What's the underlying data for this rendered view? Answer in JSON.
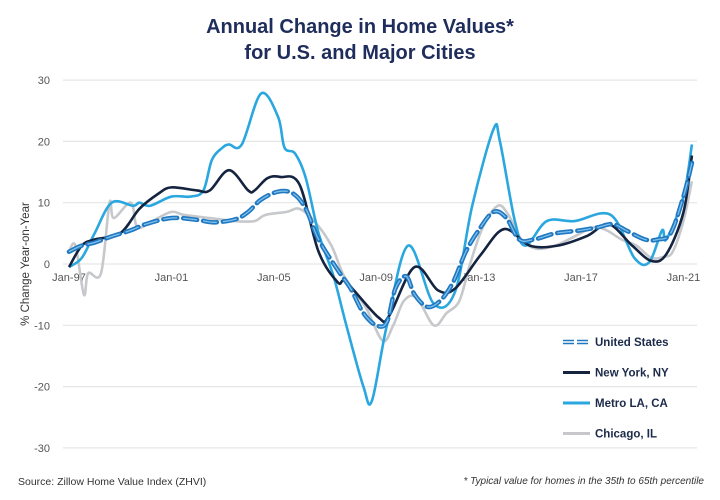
{
  "chart_data": {
    "type": "line",
    "title": "Annual Change in Home Values*",
    "subtitle": "for U.S. and Major Cities",
    "ylabel": "% Change Year-on-Year",
    "xlabel": "",
    "ylim": [
      -30,
      30
    ],
    "yticks": [
      30,
      20,
      10,
      0,
      -10,
      -20,
      -30
    ],
    "xticks": [
      {
        "label": "Jan-97",
        "date": "1997-01"
      },
      {
        "label": "Jan-01",
        "date": "2001-01"
      },
      {
        "label": "Jan-05",
        "date": "2005-01"
      },
      {
        "label": "Jan-09",
        "date": "2009-01"
      },
      {
        "label": "Jan-13",
        "date": "2013-01"
      },
      {
        "label": "Jan-17",
        "date": "2017-01"
      },
      {
        "label": "Jan-21",
        "date": "2021-01"
      }
    ],
    "grid": true,
    "legend_position": "bottom-right",
    "series": [
      {
        "name": "Chicago, IL",
        "color": "#c6c8cb",
        "style": "solid",
        "points": [
          [
            "1997-01",
            2
          ],
          [
            "1997-04",
            3
          ],
          [
            "1997-08",
            -5
          ],
          [
            "1997-10",
            -1.5
          ],
          [
            "1998-04",
            -1.5
          ],
          [
            "1998-08",
            10
          ],
          [
            "1998-10",
            7.5
          ],
          [
            "1999-06",
            10
          ],
          [
            "1999-09",
            6
          ],
          [
            "2000-04",
            7
          ],
          [
            "2001-01",
            8.5
          ],
          [
            "2001-07",
            8
          ],
          [
            "2002-07",
            7.5
          ],
          [
            "2003-07",
            7
          ],
          [
            "2004-04",
            7
          ],
          [
            "2004-09",
            8
          ],
          [
            "2005-07",
            8.5
          ],
          [
            "2006-01",
            9
          ],
          [
            "2006-08",
            7
          ],
          [
            "2007-04",
            3
          ],
          [
            "2007-10",
            -2
          ],
          [
            "2008-08",
            -7
          ],
          [
            "2009-04",
            -12.5
          ],
          [
            "2009-09",
            -10
          ],
          [
            "2010-02",
            -6
          ],
          [
            "2010-08",
            -5.5
          ],
          [
            "2011-04",
            -10
          ],
          [
            "2011-10",
            -8
          ],
          [
            "2012-04",
            -6
          ],
          [
            "2012-09",
            0
          ],
          [
            "2013-03",
            6
          ],
          [
            "2013-10",
            9.5
          ],
          [
            "2014-03",
            8
          ],
          [
            "2014-09",
            4
          ],
          [
            "2015-04",
            2.5
          ],
          [
            "2016-01",
            3
          ],
          [
            "2016-10",
            4.5
          ],
          [
            "2017-07",
            6
          ],
          [
            "2018-01",
            5.5
          ],
          [
            "2018-08",
            4
          ],
          [
            "2019-03",
            3
          ],
          [
            "2019-10",
            1
          ],
          [
            "2020-04",
            1.2
          ],
          [
            "2020-08",
            2
          ],
          [
            "2021-01",
            7
          ],
          [
            "2021-05",
            13.5
          ]
        ]
      },
      {
        "name": "Metro LA, CA",
        "color": "#2aa7df",
        "style": "solid",
        "points": [
          [
            "1997-01",
            -0.5
          ],
          [
            "1997-07",
            1
          ],
          [
            "1998-01",
            5
          ],
          [
            "1998-09",
            10
          ],
          [
            "1999-07",
            9.5
          ],
          [
            "1999-10",
            10
          ],
          [
            "2000-03",
            9.5
          ],
          [
            "2001-01",
            11
          ],
          [
            "2001-10",
            11
          ],
          [
            "2002-04",
            12
          ],
          [
            "2002-08",
            17
          ],
          [
            "2003-01",
            19
          ],
          [
            "2003-04",
            19.5
          ],
          [
            "2003-10",
            19.5
          ],
          [
            "2004-07",
            27.8
          ],
          [
            "2005-03",
            24
          ],
          [
            "2005-06",
            19
          ],
          [
            "2005-11",
            18
          ],
          [
            "2006-04",
            14
          ],
          [
            "2006-10",
            5
          ],
          [
            "2007-05",
            -2
          ],
          [
            "2007-11",
            -10
          ],
          [
            "2008-07",
            -20
          ],
          [
            "2008-11",
            -22.3
          ],
          [
            "2009-06",
            -10
          ],
          [
            "2010-04",
            3
          ],
          [
            "2011-04",
            -6.5
          ],
          [
            "2012-02",
            -4.5
          ],
          [
            "2012-10",
            9.5
          ],
          [
            "2013-08",
            22
          ],
          [
            "2013-11",
            20
          ],
          [
            "2014-06",
            7
          ],
          [
            "2014-11",
            3
          ],
          [
            "2015-09",
            7
          ],
          [
            "2016-10",
            7
          ],
          [
            "2018-03",
            8
          ],
          [
            "2019-02",
            1
          ],
          [
            "2019-09",
            0.3
          ],
          [
            "2020-03",
            5.5
          ],
          [
            "2020-05",
            4
          ],
          [
            "2021-01",
            11
          ],
          [
            "2021-05",
            19.5
          ]
        ]
      },
      {
        "name": "New York, NY",
        "color": "#142440",
        "style": "solid",
        "points": [
          [
            "1997-01",
            -0.5
          ],
          [
            "1997-07",
            3
          ],
          [
            "1998-01",
            4
          ],
          [
            "1999-01",
            5
          ],
          [
            "1999-10",
            9
          ],
          [
            "2000-07",
            11.5
          ],
          [
            "2001-01",
            12.5
          ],
          [
            "2002-01",
            12
          ],
          [
            "2002-07",
            12
          ],
          [
            "2003-04",
            15.3
          ],
          [
            "2004-01",
            12
          ],
          [
            "2004-04",
            12
          ],
          [
            "2004-10",
            14
          ],
          [
            "2005-04",
            14.2
          ],
          [
            "2006-01",
            13
          ],
          [
            "2006-10",
            2
          ],
          [
            "2007-07",
            -3
          ],
          [
            "2007-11",
            -3
          ],
          [
            "2009-02",
            -8.7
          ],
          [
            "2009-07",
            -8.5
          ],
          [
            "2010-07",
            -0.5
          ],
          [
            "2011-06",
            -4.3
          ],
          [
            "2012-02",
            -4
          ],
          [
            "2013-02",
            1.5
          ],
          [
            "2014-01",
            5.7
          ],
          [
            "2015-01",
            3
          ],
          [
            "2016-02",
            3
          ],
          [
            "2017-04",
            4.6
          ],
          [
            "2018-02",
            6.5
          ],
          [
            "2019-01",
            3
          ],
          [
            "2019-10",
            0.5
          ],
          [
            "2020-05",
            1.6
          ],
          [
            "2021-01",
            8.4
          ],
          [
            "2021-05",
            17.7
          ]
        ]
      },
      {
        "name": "United States",
        "color": "#1f78c1",
        "style": "dashed",
        "points": [
          [
            "1997-01",
            2
          ],
          [
            "1997-07",
            3
          ],
          [
            "1998-01",
            3.5
          ],
          [
            "1998-09",
            4.5
          ],
          [
            "1999-06",
            5.5
          ],
          [
            "2000-01",
            6.5
          ],
          [
            "2001-01",
            7.5
          ],
          [
            "2002-01",
            7.2
          ],
          [
            "2002-09",
            6.8
          ],
          [
            "2003-07",
            7.3
          ],
          [
            "2004-01",
            8.5
          ],
          [
            "2004-07",
            10.5
          ],
          [
            "2005-03",
            11.8
          ],
          [
            "2005-10",
            11.5
          ],
          [
            "2006-04",
            9
          ],
          [
            "2006-10",
            4
          ],
          [
            "2007-07",
            -1
          ],
          [
            "2008-01",
            -4
          ],
          [
            "2008-07",
            -8
          ],
          [
            "2009-01",
            -10
          ],
          [
            "2009-06",
            -9.5
          ],
          [
            "2009-10",
            -4
          ],
          [
            "2010-03",
            -2
          ],
          [
            "2010-07",
            -5
          ],
          [
            "2011-01",
            -7
          ],
          [
            "2011-07",
            -6
          ],
          [
            "2012-01",
            -3
          ],
          [
            "2012-07",
            2
          ],
          [
            "2013-01",
            5.5
          ],
          [
            "2013-08",
            8.5
          ],
          [
            "2014-02",
            7.5
          ],
          [
            "2014-08",
            4
          ],
          [
            "2015-03",
            4
          ],
          [
            "2016-01",
            5
          ],
          [
            "2017-01",
            5.5
          ],
          [
            "2017-09",
            6
          ],
          [
            "2018-04",
            6.5
          ],
          [
            "2018-10",
            5.5
          ],
          [
            "2019-07",
            4
          ],
          [
            "2020-01",
            4
          ],
          [
            "2020-07",
            5
          ],
          [
            "2021-01",
            11
          ],
          [
            "2021-05",
            16.5
          ]
        ]
      }
    ],
    "legend": [
      "United States",
      "New York, NY",
      "Metro LA, CA",
      "Chicago, IL"
    ]
  },
  "footer": {
    "source": "Source: Zillow Home Value Index (ZHVI)",
    "note": "* Typical value for homes in the 35th to 65th percentile"
  }
}
